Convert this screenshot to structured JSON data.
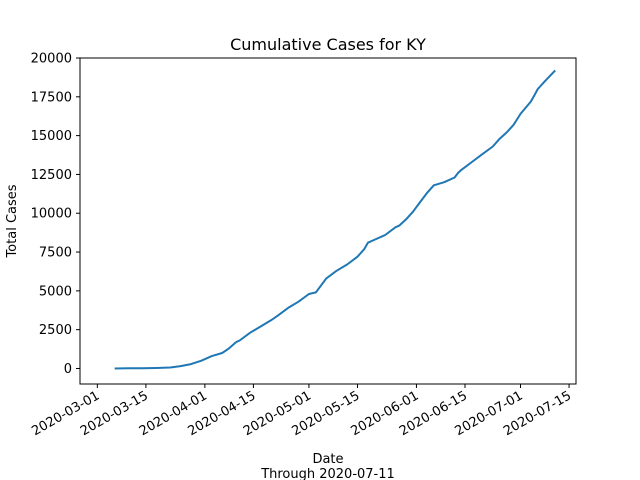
{
  "chart_data": {
    "type": "line",
    "title": "Cumulative Cases for KY",
    "xlabel": "Date",
    "xlabel_sub": "Through 2020-07-11",
    "ylabel": "Total Cases",
    "x_ticks": [
      "2020-03-01",
      "2020-03-15",
      "2020-04-01",
      "2020-04-15",
      "2020-05-01",
      "2020-05-15",
      "2020-06-01",
      "2020-06-15",
      "2020-07-01",
      "2020-07-15"
    ],
    "y_ticks": [
      0,
      2500,
      5000,
      7500,
      10000,
      12500,
      15000,
      17500,
      20000
    ],
    "y_tick_labels": [
      "0",
      "2500",
      "5000",
      "7500",
      "10000",
      "12500",
      "15000",
      "17500",
      "20000"
    ],
    "ylim": [
      -1000,
      20000
    ],
    "xlim": [
      "2020-02-25",
      "2020-07-17"
    ],
    "grid": false,
    "legend": "none",
    "colors": {
      "line": "#1f77b4",
      "axes": "#000000",
      "background": "#ffffff"
    },
    "series": [
      {
        "x": [
          "2020-03-06",
          "2020-03-10",
          "2020-03-14",
          "2020-03-18",
          "2020-03-22",
          "2020-03-25",
          "2020-03-28",
          "2020-03-31",
          "2020-04-03",
          "2020-04-06",
          "2020-04-08",
          "2020-04-10",
          "2020-04-11",
          "2020-04-14",
          "2020-04-17",
          "2020-04-20",
          "2020-04-22",
          "2020-04-25",
          "2020-04-28",
          "2020-05-01",
          "2020-05-03",
          "2020-05-04",
          "2020-05-06",
          "2020-05-09",
          "2020-05-12",
          "2020-05-15",
          "2020-05-17",
          "2020-05-18",
          "2020-05-20",
          "2020-05-23",
          "2020-05-26",
          "2020-05-27",
          "2020-05-29",
          "2020-05-31",
          "2020-06-02",
          "2020-06-04",
          "2020-06-06",
          "2020-06-09",
          "2020-06-12",
          "2020-06-13",
          "2020-06-14",
          "2020-06-17",
          "2020-06-20",
          "2020-06-23",
          "2020-06-25",
          "2020-06-27",
          "2020-06-29",
          "2020-07-01",
          "2020-07-04",
          "2020-07-05",
          "2020-07-06",
          "2020-07-08",
          "2020-07-11"
        ],
        "values": [
          1,
          10,
          20,
          30,
          60,
          150,
          280,
          500,
          800,
          1000,
          1300,
          1700,
          1800,
          2300,
          2700,
          3100,
          3400,
          3900,
          4300,
          4800,
          4900,
          5200,
          5800,
          6300,
          6700,
          7200,
          7700,
          8100,
          8300,
          8600,
          9100,
          9200,
          9600,
          10100,
          10700,
          11300,
          11800,
          12000,
          12300,
          12600,
          12800,
          13300,
          13800,
          14300,
          14800,
          15200,
          15700,
          16400,
          17200,
          17600,
          18000,
          18500,
          19200
        ]
      }
    ]
  }
}
